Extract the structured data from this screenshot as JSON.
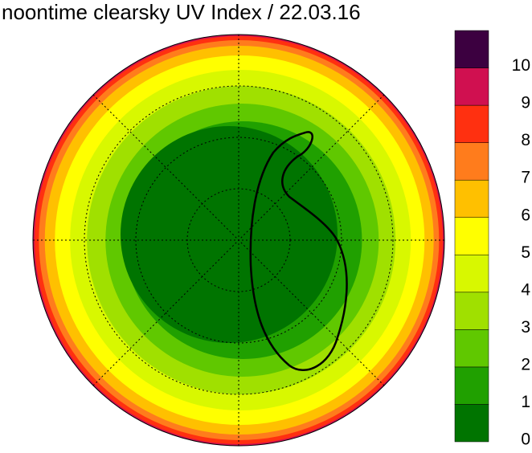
{
  "title": "noontime clearsky UV Index / 22.03.16",
  "colorbar": {
    "ticks": [
      0,
      1,
      2,
      3,
      4,
      5,
      6,
      7,
      8,
      9,
      10
    ],
    "colors": [
      "#007400",
      "#20a000",
      "#60c800",
      "#a0e000",
      "#d8f800",
      "#ffff00",
      "#ffc000",
      "#ff7c1c",
      "#ff3010",
      "#d01050",
      "#900070",
      "#3c0040"
    ]
  }
}
